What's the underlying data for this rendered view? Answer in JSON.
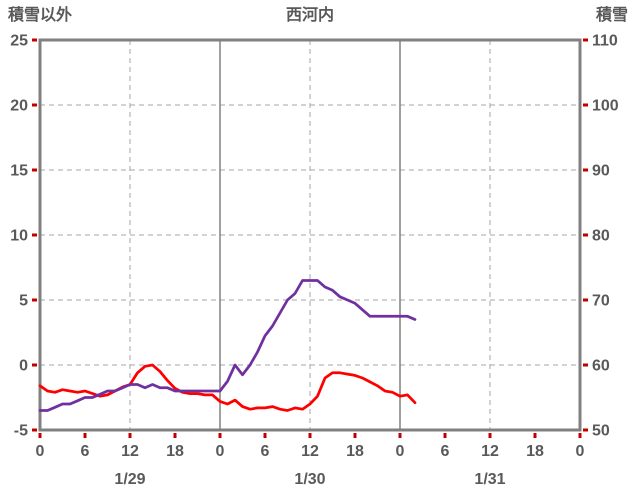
{
  "header": {
    "left_axis_title": "積雪以外",
    "chart_title": "西河内",
    "right_axis_title": "積雪"
  },
  "colors": {
    "text": "#595959",
    "border": "#808080",
    "grid_dashed": "#a6a6a6",
    "grid_solid": "#808080",
    "tick_mark": "#c00000",
    "series_left": "#ff0000",
    "series_right": "#7030a0",
    "background": "#ffffff"
  },
  "chart_data": {
    "type": "line",
    "title": "西河内",
    "x_unit": "hour",
    "x_range": [
      0,
      72
    ],
    "x_tick_interval": 6,
    "x_tick_labels": [
      "0",
      "6",
      "12",
      "18",
      "0",
      "6",
      "12",
      "18",
      "0",
      "6",
      "12",
      "18",
      "0"
    ],
    "date_labels": [
      {
        "label": "1/29",
        "hour": 12
      },
      {
        "label": "1/30",
        "hour": 36
      },
      {
        "label": "1/31",
        "hour": 60
      }
    ],
    "left_axis": {
      "title": "積雪以外",
      "min": -5,
      "max": 25,
      "tick_interval": 5,
      "tick_labels": [
        "25",
        "20",
        "15",
        "10",
        "5",
        "0",
        "-5"
      ]
    },
    "right_axis": {
      "title": "積雪",
      "min": 50,
      "max": 110,
      "tick_interval": 10,
      "tick_labels": [
        "110",
        "100",
        "90",
        "80",
        "70",
        "60",
        "50"
      ]
    },
    "grid": {
      "h_dashed_left_values": [
        20,
        15,
        10,
        5,
        0
      ],
      "v_dashed_hours": [
        12,
        36,
        60
      ],
      "v_solid_hours": [
        24,
        48
      ]
    },
    "series": [
      {
        "name": "積雪以外",
        "axis": "left",
        "color": "#ff0000",
        "x": [
          0,
          1,
          2,
          3,
          4,
          5,
          6,
          7,
          8,
          9,
          10,
          11,
          12,
          13,
          14,
          15,
          16,
          17,
          18,
          19,
          20,
          21,
          22,
          23,
          24,
          25,
          26,
          27,
          28,
          29,
          30,
          31,
          32,
          33,
          34,
          35,
          36,
          37,
          38,
          39,
          40,
          41,
          42,
          43,
          44,
          45,
          46,
          47,
          48,
          49,
          50
        ],
        "values": [
          -1.6,
          -2.0,
          -2.1,
          -1.9,
          -2.0,
          -2.1,
          -2.0,
          -2.2,
          -2.4,
          -2.3,
          -2.0,
          -1.7,
          -1.5,
          -0.6,
          -0.1,
          0.0,
          -0.5,
          -1.2,
          -1.8,
          -2.1,
          -2.2,
          -2.2,
          -2.3,
          -2.3,
          -2.8,
          -3.0,
          -2.7,
          -3.2,
          -3.4,
          -3.3,
          -3.3,
          -3.2,
          -3.4,
          -3.5,
          -3.3,
          -3.4,
          -3.0,
          -2.4,
          -1.0,
          -0.6,
          -0.6,
          -0.7,
          -0.8,
          -1.0,
          -1.3,
          -1.6,
          -2.0,
          -2.1,
          -2.4,
          -2.3,
          -2.9
        ]
      },
      {
        "name": "積雪",
        "axis": "right",
        "color": "#7030a0",
        "x": [
          0,
          1,
          2,
          3,
          4,
          5,
          6,
          7,
          8,
          9,
          10,
          11,
          12,
          13,
          14,
          15,
          16,
          17,
          18,
          19,
          20,
          21,
          22,
          23,
          24,
          25,
          26,
          27,
          28,
          29,
          30,
          31,
          32,
          33,
          34,
          35,
          36,
          37,
          38,
          39,
          40,
          41,
          42,
          43,
          44,
          45,
          46,
          47,
          48,
          49,
          50
        ],
        "values": [
          53,
          53,
          53.5,
          54,
          54,
          54.5,
          55,
          55,
          55.5,
          56,
          56,
          56.5,
          57,
          57,
          56.5,
          57,
          56.5,
          56.5,
          56,
          56,
          56,
          56,
          56,
          56,
          56,
          57.5,
          60,
          58.5,
          60,
          62,
          64.5,
          66,
          68,
          70,
          71,
          73,
          73,
          73,
          72,
          71.5,
          70.5,
          70,
          69.5,
          68.5,
          67.5,
          67.5,
          67.5,
          67.5,
          67.5,
          67.5,
          67
        ]
      }
    ]
  }
}
